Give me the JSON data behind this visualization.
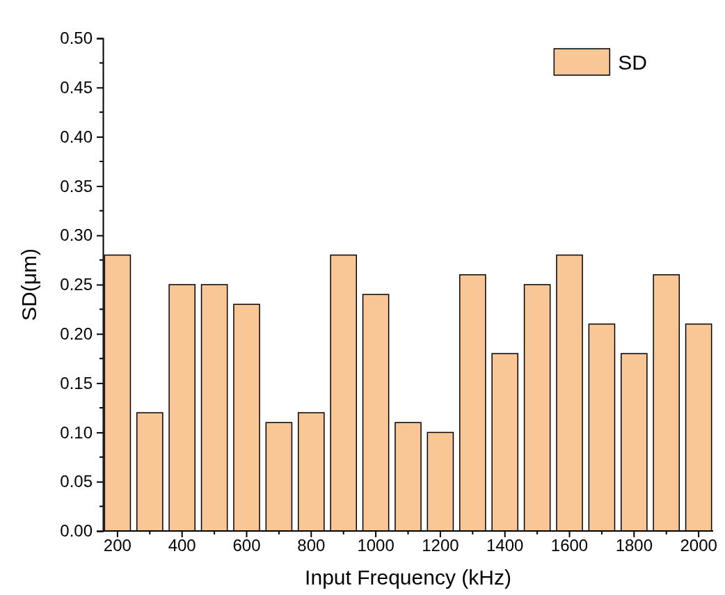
{
  "chart_data": {
    "type": "bar",
    "xlabel": "Input Frequency (kHz)",
    "ylabel": "SD(μm)",
    "categories": [
      "200",
      null,
      "400",
      null,
      "600",
      null,
      "800",
      null,
      "1000",
      null,
      "1200",
      null,
      "1400",
      null,
      "1600",
      null,
      "1800",
      null,
      "2000"
    ],
    "series": [
      {
        "name": "SD",
        "color": "#f9c796",
        "values": [
          0.28,
          0.12,
          0.25,
          0.25,
          0.23,
          0.11,
          0.12,
          0.28,
          0.24,
          0.11,
          0.1,
          0.26,
          0.18,
          0.25,
          0.28,
          0.21,
          0.18,
          0.26,
          0.21
        ]
      }
    ],
    "ylim": [
      0,
      0.5
    ],
    "yticks": [
      {
        "value": 0,
        "label": "0.00"
      },
      {
        "value": 0.05,
        "label": "0.05"
      },
      {
        "value": 0.1,
        "label": "0.10"
      },
      {
        "value": 0.15,
        "label": "0.15"
      },
      {
        "value": 0.2,
        "label": "0.20"
      },
      {
        "value": 0.25,
        "label": "0.25"
      },
      {
        "value": 0.3,
        "label": "0.30"
      },
      {
        "value": 0.35,
        "label": "0.35"
      },
      {
        "value": 0.4,
        "label": "0.40"
      },
      {
        "value": 0.45,
        "label": "0.45"
      },
      {
        "value": 0.5,
        "label": "0.50"
      }
    ],
    "legend": "top right",
    "grid": false
  }
}
